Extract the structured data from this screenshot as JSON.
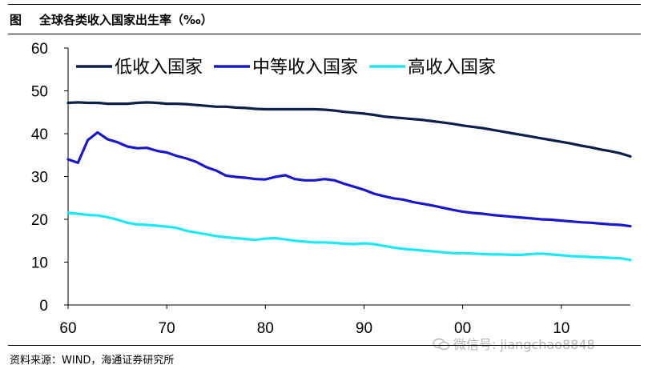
{
  "header": {
    "fig_label": "图",
    "title": "全球各类收入国家出生率（‰）"
  },
  "source": "资料来源：WIND，海通证券研究所",
  "watermark": "微信号: jiangchao8848",
  "chart_data": {
    "type": "line",
    "title": "全球各类收入国家出生率（‰）",
    "xlabel": "",
    "ylabel": "",
    "x": [
      1960,
      1961,
      1962,
      1963,
      1964,
      1965,
      1966,
      1967,
      1968,
      1969,
      1970,
      1971,
      1972,
      1973,
      1974,
      1975,
      1976,
      1977,
      1978,
      1979,
      1980,
      1981,
      1982,
      1983,
      1984,
      1985,
      1986,
      1987,
      1988,
      1989,
      1990,
      1991,
      1992,
      1993,
      1994,
      1995,
      1996,
      1997,
      1998,
      1999,
      2000,
      2001,
      2002,
      2003,
      2004,
      2005,
      2006,
      2007,
      2008,
      2009,
      2010,
      2011,
      2012,
      2013,
      2014,
      2015,
      2016,
      2017
    ],
    "xlim": [
      1960,
      2017
    ],
    "ylim": [
      0,
      60
    ],
    "yticks": [
      0,
      10,
      20,
      30,
      40,
      50,
      60
    ],
    "ytick_labels": [
      "0",
      "10",
      "20",
      "30",
      "40",
      "50",
      "60"
    ],
    "xticks": [
      1960,
      1970,
      1980,
      1990,
      2000,
      2010
    ],
    "xtick_labels": [
      "60",
      "70",
      "80",
      "90",
      "00",
      "10"
    ],
    "legend_position": "top",
    "series": [
      {
        "name": "低收入国家",
        "color": "#0d1f4a",
        "values": [
          47.2,
          47.3,
          47.2,
          47.2,
          47.0,
          47.0,
          47.0,
          47.2,
          47.3,
          47.2,
          47.0,
          47.0,
          46.9,
          46.7,
          46.5,
          46.3,
          46.3,
          46.1,
          46.0,
          45.8,
          45.7,
          45.7,
          45.7,
          45.7,
          45.7,
          45.7,
          45.6,
          45.4,
          45.1,
          44.9,
          44.7,
          44.4,
          44.0,
          43.8,
          43.6,
          43.4,
          43.2,
          42.9,
          42.6,
          42.3,
          41.9,
          41.6,
          41.3,
          40.9,
          40.5,
          40.1,
          39.7,
          39.3,
          38.9,
          38.5,
          38.1,
          37.7,
          37.2,
          36.8,
          36.3,
          35.9,
          35.4,
          34.7
        ]
      },
      {
        "name": "中等收入国家",
        "color": "#1818cc",
        "values": [
          34.0,
          33.2,
          38.5,
          40.3,
          38.7,
          38.0,
          37.0,
          36.6,
          36.7,
          36.0,
          35.6,
          34.8,
          34.2,
          33.4,
          32.2,
          31.4,
          30.2,
          29.9,
          29.7,
          29.4,
          29.3,
          29.9,
          30.3,
          29.4,
          29.1,
          29.1,
          29.4,
          29.1,
          28.3,
          27.6,
          26.9,
          26.0,
          25.4,
          24.9,
          24.6,
          24.0,
          23.6,
          23.2,
          22.7,
          22.2,
          21.8,
          21.5,
          21.3,
          21.0,
          20.8,
          20.6,
          20.4,
          20.2,
          20.0,
          19.9,
          19.7,
          19.5,
          19.3,
          19.2,
          19.0,
          18.8,
          18.7,
          18.4
        ]
      },
      {
        "name": "高收入国家",
        "color": "#1de8f5",
        "values": [
          21.5,
          21.3,
          21.0,
          20.9,
          20.5,
          19.9,
          19.2,
          18.8,
          18.7,
          18.5,
          18.3,
          18.0,
          17.3,
          16.9,
          16.5,
          16.1,
          15.8,
          15.6,
          15.4,
          15.2,
          15.5,
          15.6,
          15.3,
          15.0,
          14.8,
          14.6,
          14.6,
          14.5,
          14.3,
          14.2,
          14.4,
          14.2,
          13.8,
          13.4,
          13.1,
          12.9,
          12.7,
          12.5,
          12.3,
          12.1,
          12.1,
          12.0,
          11.9,
          11.8,
          11.8,
          11.7,
          11.7,
          11.9,
          12.0,
          11.8,
          11.6,
          11.4,
          11.3,
          11.2,
          11.1,
          11.0,
          10.9,
          10.5
        ]
      }
    ]
  }
}
